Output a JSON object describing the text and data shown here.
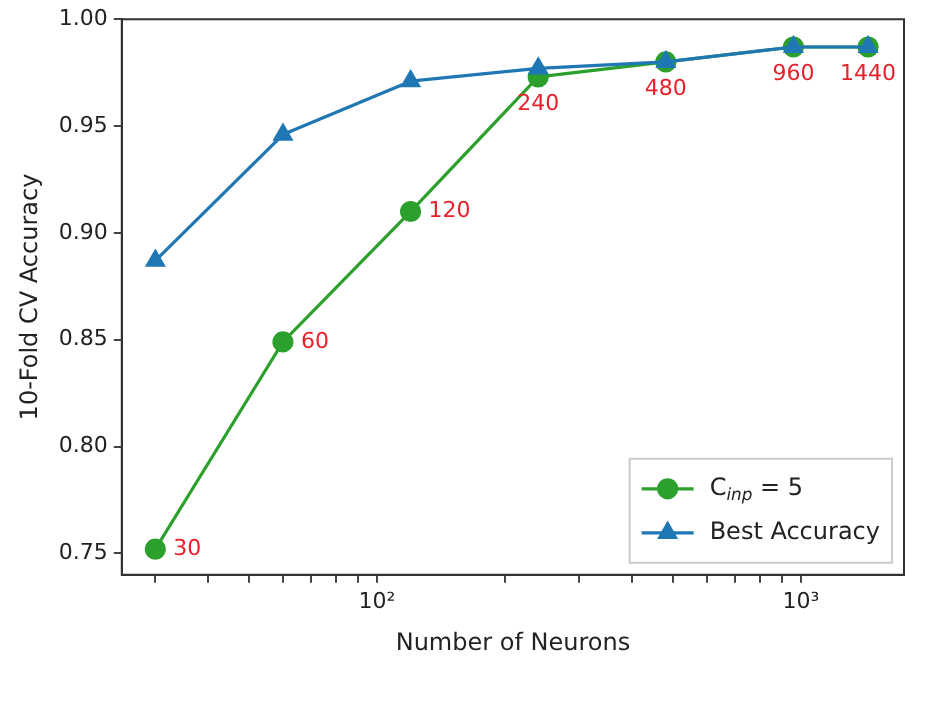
{
  "chart_data": {
    "type": "line",
    "xlabel": "Number of Neurons",
    "ylabel": "10-Fold CV Accuracy",
    "log": "x",
    "xlim": [
      25,
      1750
    ],
    "xticks": [
      {
        "value": 30,
        "label": null
      },
      {
        "value": 40,
        "label": null
      },
      {
        "value": 50,
        "label": null
      },
      {
        "value": 60,
        "label": null
      },
      {
        "value": 70,
        "label": null
      },
      {
        "value": 80,
        "label": null
      },
      {
        "value": 90,
        "label": null
      },
      {
        "value": 100,
        "label": "10²"
      },
      {
        "value": 200,
        "label": null
      },
      {
        "value": 300,
        "label": null
      },
      {
        "value": 400,
        "label": null
      },
      {
        "value": 500,
        "label": null
      },
      {
        "value": 600,
        "label": null
      },
      {
        "value": 700,
        "label": null
      },
      {
        "value": 800,
        "label": null
      },
      {
        "value": 900,
        "label": null
      },
      {
        "value": 1000,
        "label": "10³"
      }
    ],
    "ylim": [
      0.74,
      1.0
    ],
    "yticks": [
      {
        "value": 0.75,
        "label": "0.75"
      },
      {
        "value": 0.8,
        "label": "0.80"
      },
      {
        "value": 0.85,
        "label": "0.85"
      },
      {
        "value": 0.9,
        "label": "0.90"
      },
      {
        "value": 0.95,
        "label": "0.95"
      },
      {
        "value": 1.0,
        "label": "1.00"
      }
    ],
    "x": [
      30,
      60,
      120,
      240,
      480,
      960,
      1440
    ],
    "series": [
      {
        "name": "C$_{inp}$ = 5",
        "color": "#2ca02c",
        "marker": "circle",
        "values": [
          0.752,
          0.849,
          0.91,
          0.973,
          0.98,
          0.987,
          0.987
        ]
      },
      {
        "name": "Best Accuracy",
        "color": "#1f77b4",
        "marker": "triangle",
        "values": [
          0.887,
          0.946,
          0.971,
          0.977,
          0.98,
          0.987,
          0.987
        ]
      }
    ],
    "annotations": [
      {
        "text": "30",
        "x": 30,
        "y": 0.752
      },
      {
        "text": "60",
        "x": 60,
        "y": 0.849
      },
      {
        "text": "120",
        "x": 120,
        "y": 0.91
      },
      {
        "text": "240",
        "x": 240,
        "y": 0.973
      },
      {
        "text": "480",
        "x": 480,
        "y": 0.98
      },
      {
        "text": "960",
        "x": 960,
        "y": 0.987
      },
      {
        "text": "1440",
        "x": 1440,
        "y": 0.987
      }
    ],
    "grid": false,
    "legend": "bottom right",
    "line_style": "solid"
  }
}
